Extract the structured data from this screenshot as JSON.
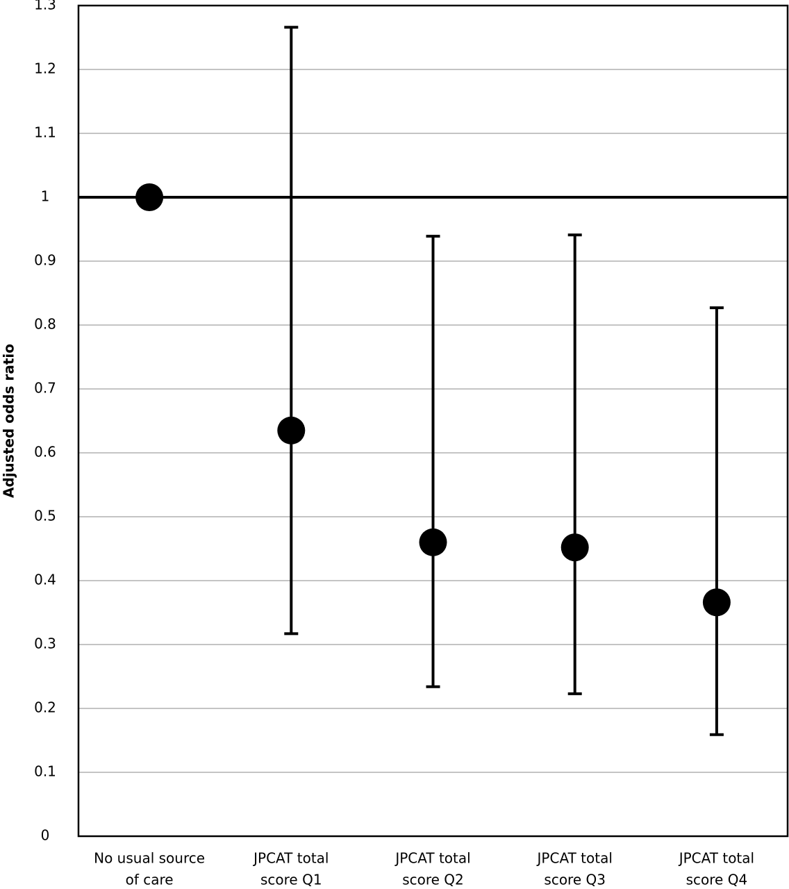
{
  "chart_data": {
    "type": "errorbar",
    "y_label": "Adjusted odds ratio",
    "categories": [
      [
        "No usual source",
        "of care"
      ],
      [
        "JPCAT total",
        "score Q1"
      ],
      [
        "JPCAT total",
        "score Q2"
      ],
      [
        "JPCAT total",
        "score Q3"
      ],
      [
        "JPCAT total",
        "score Q4"
      ]
    ],
    "values": [
      1.0,
      0.635,
      0.46,
      0.452,
      0.366
    ],
    "lower": [
      null,
      0.317,
      0.234,
      0.223,
      0.159
    ],
    "upper": [
      null,
      1.266,
      0.939,
      0.941,
      0.827
    ],
    "color": "#000000",
    "ylim": [
      0,
      1.3
    ],
    "yticks": [
      0,
      0.1,
      0.2,
      0.3,
      0.4,
      0.5,
      0.6,
      0.7,
      0.8,
      0.9,
      1,
      1.1,
      1.2,
      1.3
    ],
    "grid": true,
    "reference_line": 1
  }
}
